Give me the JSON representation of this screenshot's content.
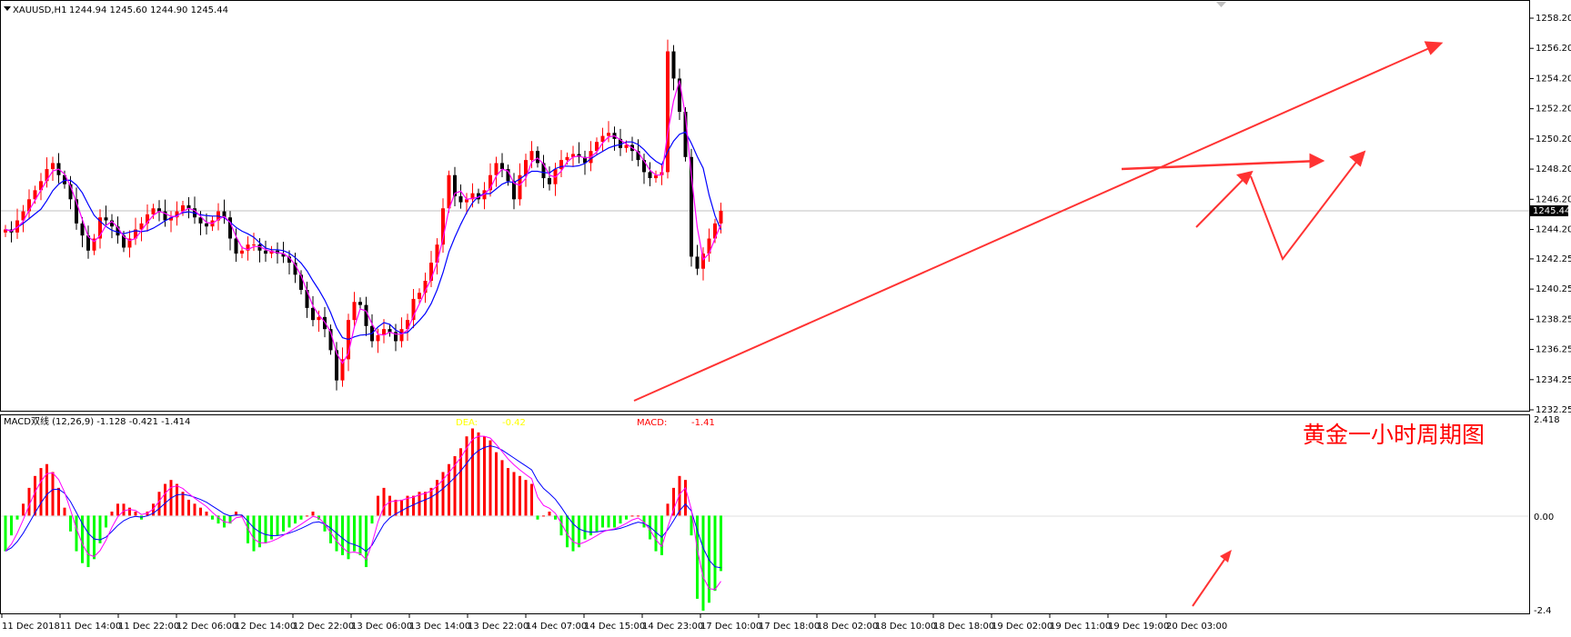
{
  "header": {
    "symbol": "XAUUSD,H1",
    "ohlc": "1244.94 1245.60 1244.90 1245.44"
  },
  "colors": {
    "up": "#ff0000",
    "down": "#000000",
    "ma_fast": "#ff00ff",
    "ma_slow": "#0000ff",
    "macd_pos": "#ff0000",
    "macd_neg": "#00ff00",
    "dea_label": "#ffff00",
    "macd_label": "#ff0000",
    "arrow": "#ff3333",
    "annotation": "#ff0000"
  },
  "price_axis": {
    "ticks": [
      "1258.20",
      "1256.20",
      "1254.20",
      "1252.20",
      "1250.20",
      "1248.20",
      "1246.20",
      "1244.20",
      "1242.25",
      "1240.25",
      "1238.25",
      "1236.25",
      "1234.25",
      "1232.25"
    ],
    "current_price": "1245.44"
  },
  "macd_panel": {
    "title": "MACD双线 (12,26,9) -1.128 -0.421 -1.414",
    "dea_label": "DEA:",
    "dea_value": "-0.42",
    "macd_label": "MACD:",
    "macd_value": "-1.41",
    "ticks": [
      "2.418",
      "0.00",
      "-2.4"
    ]
  },
  "annotation": "黄金一小时周期图",
  "time_axis": [
    "11 Dec 2018",
    "11 Dec 14:00",
    "11 Dec 22:00",
    "12 Dec 06:00",
    "12 Dec 14:00",
    "12 Dec 22:00",
    "13 Dec 06:00",
    "13 Dec 14:00",
    "13 Dec 22:00",
    "14 Dec 07:00",
    "14 Dec 15:00",
    "14 Dec 23:00",
    "17 Dec 10:00",
    "17 Dec 18:00",
    "18 Dec 02:00",
    "18 Dec 10:00",
    "18 Dec 18:00",
    "19 Dec 02:00",
    "19 Dec 11:00",
    "19 Dec 19:00",
    "20 Dec 03:00"
  ],
  "chart_data": [
    {
      "type": "candlestick",
      "title": "XAUUSD,H1",
      "ylim": [
        1232.25,
        1258.2
      ],
      "price_path": [
        1244.2,
        1244.0,
        1244.8,
        1245.4,
        1246.2,
        1246.8,
        1247.4,
        1248.2,
        1248.6,
        1247.8,
        1247.2,
        1246.2,
        1244.6,
        1243.8,
        1242.8,
        1243.6,
        1245.0,
        1244.8,
        1244.4,
        1243.8,
        1243.0,
        1243.6,
        1244.2,
        1244.6,
        1245.2,
        1245.6,
        1245.4,
        1244.8,
        1245.0,
        1245.4,
        1245.8,
        1245.6,
        1245.0,
        1244.6,
        1244.4,
        1244.8,
        1245.4,
        1245.0,
        1243.6,
        1242.6,
        1242.8,
        1243.2,
        1243.2,
        1242.8,
        1242.6,
        1242.8,
        1242.6,
        1242.4,
        1242.0,
        1241.2,
        1240.2,
        1239.0,
        1238.2,
        1238.4,
        1237.6,
        1236.2,
        1234.2,
        1235.6,
        1238.2,
        1239.4,
        1239.2,
        1237.8,
        1236.8,
        1237.2,
        1237.6,
        1237.4,
        1236.8,
        1237.6,
        1238.2,
        1239.6,
        1240.0,
        1240.8,
        1242.0,
        1243.2,
        1245.6,
        1247.8,
        1246.4,
        1246.0,
        1246.2,
        1246.6,
        1246.2,
        1246.8,
        1247.8,
        1248.6,
        1248.2,
        1247.4,
        1246.2,
        1247.8,
        1248.8,
        1249.4,
        1248.6,
        1247.6,
        1247.2,
        1248.2,
        1248.8,
        1249.0,
        1249.2,
        1249.0,
        1248.6,
        1249.4,
        1250.0,
        1250.4,
        1250.6,
        1250.2,
        1249.6,
        1249.8,
        1249.4,
        1248.8,
        1248.0,
        1247.6,
        1247.8,
        1248.0,
        1256.0,
        1254.2,
        1252.0,
        1249.0,
        1242.4,
        1241.6,
        1242.6,
        1243.6,
        1244.6,
        1245.44
      ],
      "macd_histogram": [
        -0.9,
        -0.5,
        -0.1,
        0.3,
        0.7,
        1.0,
        1.2,
        1.3,
        1.1,
        0.7,
        0.2,
        -0.4,
        -0.9,
        -1.2,
        -1.3,
        -1.1,
        -0.7,
        -0.3,
        0.1,
        0.3,
        0.3,
        0.2,
        0.1,
        -0.1,
        0.1,
        0.3,
        0.6,
        0.8,
        0.9,
        0.8,
        0.6,
        0.4,
        0.3,
        0.2,
        0.1,
        -0.1,
        -0.2,
        -0.3,
        -0.2,
        0.1,
        0.0,
        -0.7,
        -0.9,
        -0.8,
        -0.7,
        -0.6,
        -0.5,
        -0.4,
        -0.3,
        -0.2,
        -0.1,
        0.0,
        0.1,
        -0.1,
        -0.4,
        -0.7,
        -0.9,
        -1.0,
        -1.1,
        -0.9,
        -1.0,
        -1.3,
        -0.2,
        0.5,
        0.7,
        0.5,
        0.4,
        0.4,
        0.5,
        0.5,
        0.6,
        0.6,
        0.7,
        0.9,
        1.1,
        1.3,
        1.5,
        1.7,
        2.0,
        2.2,
        2.1,
        2.0,
        1.9,
        1.6,
        1.4,
        1.2,
        1.1,
        1.0,
        0.9,
        0.8,
        -0.1,
        0.0,
        0.1,
        -0.1,
        -0.5,
        -0.8,
        -0.9,
        -0.8,
        -0.6,
        -0.5,
        -0.4,
        -0.3,
        -0.3,
        -0.3,
        -0.2,
        -0.1,
        0.0,
        0.0,
        -0.3,
        -0.6,
        -0.9,
        -1.0,
        0.3,
        0.7,
        1.0,
        0.9,
        -0.5,
        -2.1,
        -2.4,
        -2.2,
        -1.9,
        -1.4
      ]
    }
  ]
}
